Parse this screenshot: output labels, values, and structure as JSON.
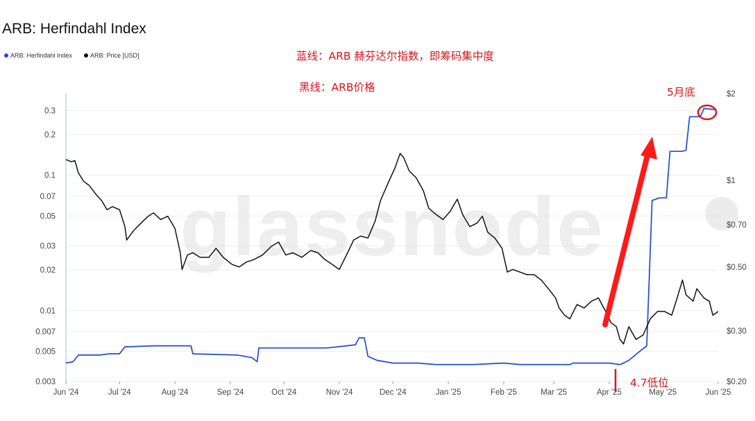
{
  "chart_data": {
    "type": "line",
    "title": "ARB: Herfindahl Index",
    "legend": [
      {
        "name": "ARB: Herfindahl Index",
        "color": "#1f48d6"
      },
      {
        "name": "ARB: Price [USD]",
        "color": "#111111"
      }
    ],
    "legend_position": "top-left",
    "watermark": "glassnode",
    "x_ticks": [
      "Jun '24",
      "Jul '24",
      "Aug '24",
      "Sep '24",
      "Oct '24",
      "Nov '24",
      "Dec '24",
      "Jan '25",
      "Feb '25",
      "Mar '25",
      "Apr '25",
      "May '25",
      "Jun '25"
    ],
    "y_left": {
      "scale": "log",
      "ticks": [
        "0.3",
        "0.2",
        "0.1",
        "0.07",
        "0.05",
        "0.03",
        "0.02",
        "0.01",
        "0.007",
        "0.005",
        "0.003"
      ],
      "range": [
        0.003,
        0.4
      ]
    },
    "y_right": {
      "scale": "log",
      "ticks": [
        "$2",
        "$1",
        "$0.70",
        "$0.50",
        "$0.30",
        "$0.20"
      ],
      "range": [
        0.2,
        2
      ]
    },
    "grid": true,
    "series": [
      {
        "name": "ARB: Herfindahl Index",
        "axis": "left",
        "color": "#1f48d6",
        "points": [
          [
            "2024-06-01",
            0.0041
          ],
          [
            "2024-06-05",
            0.0042
          ],
          [
            "2024-06-08",
            0.0047
          ],
          [
            "2024-06-20",
            0.0047
          ],
          [
            "2024-06-25",
            0.0048
          ],
          [
            "2024-07-01",
            0.0048
          ],
          [
            "2024-07-04",
            0.0054
          ],
          [
            "2024-07-20",
            0.0055
          ],
          [
            "2024-08-10",
            0.0055
          ],
          [
            "2024-08-11",
            0.0048
          ],
          [
            "2024-09-05",
            0.0047
          ],
          [
            "2024-09-13",
            0.0045
          ],
          [
            "2024-09-16",
            0.0042
          ],
          [
            "2024-09-17",
            0.0053
          ],
          [
            "2024-10-05",
            0.0053
          ],
          [
            "2024-10-25",
            0.0053
          ],
          [
            "2024-11-05",
            0.0055
          ],
          [
            "2024-11-10",
            0.0056
          ],
          [
            "2024-11-12",
            0.0063
          ],
          [
            "2024-11-15",
            0.0063
          ],
          [
            "2024-11-17",
            0.0046
          ],
          [
            "2024-11-22",
            0.0043
          ],
          [
            "2024-12-01",
            0.0041
          ],
          [
            "2024-12-15",
            0.0041
          ],
          [
            "2024-12-25",
            0.004
          ],
          [
            "2025-01-15",
            0.004
          ],
          [
            "2025-02-01",
            0.0041
          ],
          [
            "2025-02-10",
            0.004
          ],
          [
            "2025-03-01",
            0.004
          ],
          [
            "2025-03-10",
            0.004
          ],
          [
            "2025-03-12",
            0.0041
          ],
          [
            "2025-04-01",
            0.0041
          ],
          [
            "2025-04-07",
            0.004
          ],
          [
            "2025-04-09",
            0.0041
          ],
          [
            "2025-04-12",
            0.0043
          ],
          [
            "2025-04-18",
            0.005
          ],
          [
            "2025-04-22",
            0.0055
          ],
          [
            "2025-04-25",
            0.065
          ],
          [
            "2025-04-29",
            0.068
          ],
          [
            "2025-05-03",
            0.068
          ],
          [
            "2025-05-05",
            0.15
          ],
          [
            "2025-05-12",
            0.15
          ],
          [
            "2025-05-14",
            0.153
          ],
          [
            "2025-05-16",
            0.27
          ],
          [
            "2025-05-22",
            0.27
          ],
          [
            "2025-05-24",
            0.31
          ],
          [
            "2025-05-31",
            0.305
          ]
        ]
      },
      {
        "name": "ARB: Price [USD]",
        "axis": "right",
        "color": "#111111",
        "points": [
          [
            "2024-06-01",
            1.18
          ],
          [
            "2024-06-04",
            1.16
          ],
          [
            "2024-06-06",
            1.17
          ],
          [
            "2024-06-08",
            1.06
          ],
          [
            "2024-06-11",
            0.99
          ],
          [
            "2024-06-14",
            0.96
          ],
          [
            "2024-06-18",
            0.89
          ],
          [
            "2024-06-21",
            0.85
          ],
          [
            "2024-06-24",
            0.79
          ],
          [
            "2024-06-27",
            0.81
          ],
          [
            "2024-07-01",
            0.79
          ],
          [
            "2024-07-04",
            0.69
          ],
          [
            "2024-07-05",
            0.62
          ],
          [
            "2024-07-09",
            0.67
          ],
          [
            "2024-07-13",
            0.71
          ],
          [
            "2024-07-17",
            0.75
          ],
          [
            "2024-07-20",
            0.77
          ],
          [
            "2024-07-24",
            0.73
          ],
          [
            "2024-07-28",
            0.75
          ],
          [
            "2024-08-01",
            0.68
          ],
          [
            "2024-08-04",
            0.56
          ],
          [
            "2024-08-05",
            0.49
          ],
          [
            "2024-08-08",
            0.55
          ],
          [
            "2024-08-11",
            0.56
          ],
          [
            "2024-08-15",
            0.54
          ],
          [
            "2024-08-20",
            0.54
          ],
          [
            "2024-08-24",
            0.58
          ],
          [
            "2024-08-28",
            0.54
          ],
          [
            "2024-09-02",
            0.51
          ],
          [
            "2024-09-06",
            0.5
          ],
          [
            "2024-09-10",
            0.52
          ],
          [
            "2024-09-14",
            0.53
          ],
          [
            "2024-09-19",
            0.55
          ],
          [
            "2024-09-24",
            0.59
          ],
          [
            "2024-09-28",
            0.61
          ],
          [
            "2024-10-02",
            0.55
          ],
          [
            "2024-10-06",
            0.56
          ],
          [
            "2024-10-11",
            0.54
          ],
          [
            "2024-10-16",
            0.57
          ],
          [
            "2024-10-20",
            0.56
          ],
          [
            "2024-10-24",
            0.53
          ],
          [
            "2024-10-28",
            0.51
          ],
          [
            "2024-11-01",
            0.49
          ],
          [
            "2024-11-05",
            0.55
          ],
          [
            "2024-11-09",
            0.62
          ],
          [
            "2024-11-13",
            0.64
          ],
          [
            "2024-11-17",
            0.63
          ],
          [
            "2024-11-21",
            0.72
          ],
          [
            "2024-11-24",
            0.85
          ],
          [
            "2024-11-28",
            0.97
          ],
          [
            "2024-12-02",
            1.1
          ],
          [
            "2024-12-05",
            1.24
          ],
          [
            "2024-12-07",
            1.2
          ],
          [
            "2024-12-10",
            1.08
          ],
          [
            "2024-12-14",
            1.02
          ],
          [
            "2024-12-18",
            0.92
          ],
          [
            "2024-12-21",
            0.8
          ],
          [
            "2024-12-24",
            0.77
          ],
          [
            "2024-12-29",
            0.73
          ],
          [
            "2025-01-02",
            0.78
          ],
          [
            "2025-01-06",
            0.86
          ],
          [
            "2025-01-09",
            0.76
          ],
          [
            "2025-01-13",
            0.69
          ],
          [
            "2025-01-17",
            0.71
          ],
          [
            "2025-01-20",
            0.75
          ],
          [
            "2025-01-23",
            0.66
          ],
          [
            "2025-01-27",
            0.63
          ],
          [
            "2025-01-31",
            0.58
          ],
          [
            "2025-02-03",
            0.48
          ],
          [
            "2025-02-06",
            0.49
          ],
          [
            "2025-02-10",
            0.48
          ],
          [
            "2025-02-14",
            0.47
          ],
          [
            "2025-02-18",
            0.47
          ],
          [
            "2025-02-22",
            0.45
          ],
          [
            "2025-02-26",
            0.42
          ],
          [
            "2025-03-02",
            0.39
          ],
          [
            "2025-03-04",
            0.36
          ],
          [
            "2025-03-07",
            0.34
          ],
          [
            "2025-03-10",
            0.33
          ],
          [
            "2025-03-14",
            0.37
          ],
          [
            "2025-03-18",
            0.36
          ],
          [
            "2025-03-22",
            0.38
          ],
          [
            "2025-03-26",
            0.39
          ],
          [
            "2025-03-30",
            0.35
          ],
          [
            "2025-04-02",
            0.32
          ],
          [
            "2025-04-05",
            0.31
          ],
          [
            "2025-04-07",
            0.28
          ],
          [
            "2025-04-09",
            0.27
          ],
          [
            "2025-04-12",
            0.31
          ],
          [
            "2025-04-16",
            0.28
          ],
          [
            "2025-04-20",
            0.29
          ],
          [
            "2025-04-24",
            0.33
          ],
          [
            "2025-04-28",
            0.35
          ],
          [
            "2025-05-02",
            0.35
          ],
          [
            "2025-05-06",
            0.34
          ],
          [
            "2025-05-09",
            0.39
          ],
          [
            "2025-05-12",
            0.45
          ],
          [
            "2025-05-14",
            0.4
          ],
          [
            "2025-05-18",
            0.38
          ],
          [
            "2025-05-20",
            0.42
          ],
          [
            "2025-05-24",
            0.39
          ],
          [
            "2025-05-27",
            0.38
          ],
          [
            "2025-05-29",
            0.34
          ],
          [
            "2025-06-01",
            0.35
          ]
        ]
      }
    ],
    "annotations": [
      {
        "text": "蓝线：ARB 赫芬达尔指数，即筹码集中度",
        "color": "#d8141c"
      },
      {
        "text": "黑线：ARB价格",
        "color": "#d8141c"
      },
      {
        "text": "5月底",
        "color": "#d8141c"
      },
      {
        "text": "4.7低位",
        "color": "#d8141c"
      }
    ]
  }
}
